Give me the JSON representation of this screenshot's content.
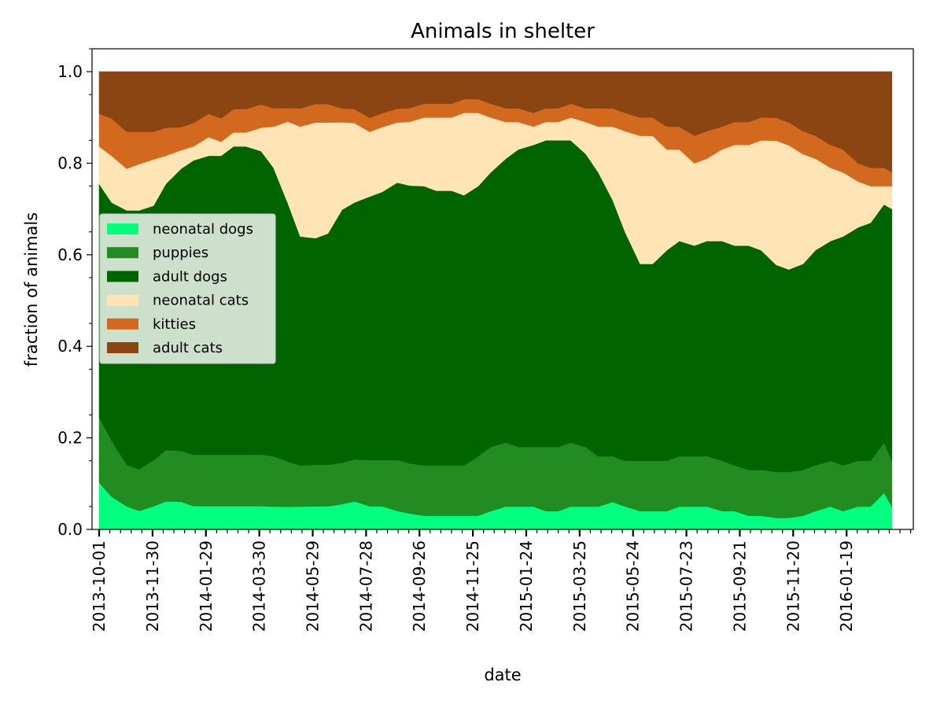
{
  "chart_data": {
    "type": "area",
    "stacked": true,
    "normalized": true,
    "title": "Animals in shelter",
    "xlabel": "date",
    "ylabel": "fraction of animals",
    "xlim": [
      "2013-09-23",
      "2016-04-03"
    ],
    "ylim": [
      0,
      1.05
    ],
    "grid": false,
    "legend_position": "center-left",
    "x_ticks": [
      "2013-10-01",
      "2013-11-30",
      "2014-01-29",
      "2014-03-30",
      "2014-05-29",
      "2014-07-28",
      "2014-09-26",
      "2014-11-25",
      "2015-01-24",
      "2015-03-25",
      "2015-05-24",
      "2015-07-23",
      "2015-09-21",
      "2015-11-20",
      "2016-01-19"
    ],
    "y_ticks": [
      "0.0",
      "0.2",
      "0.4",
      "0.6",
      "0.8",
      "1.0"
    ],
    "x": [
      "2013-10-01",
      "2013-10-15",
      "2013-11-01",
      "2013-11-15",
      "2013-12-01",
      "2013-12-15",
      "2014-01-01",
      "2014-01-15",
      "2014-02-01",
      "2014-02-15",
      "2014-03-01",
      "2014-03-15",
      "2014-04-01",
      "2014-04-15",
      "2014-05-01",
      "2014-05-15",
      "2014-06-01",
      "2014-06-15",
      "2014-07-01",
      "2014-07-15",
      "2014-08-01",
      "2014-08-15",
      "2014-09-01",
      "2014-09-15",
      "2014-10-01",
      "2014-10-15",
      "2014-11-01",
      "2014-11-15",
      "2014-12-01",
      "2014-12-15",
      "2015-01-01",
      "2015-01-15",
      "2015-02-01",
      "2015-02-15",
      "2015-03-01",
      "2015-03-15",
      "2015-04-01",
      "2015-04-15",
      "2015-05-01",
      "2015-05-15",
      "2015-06-01",
      "2015-06-15",
      "2015-07-01",
      "2015-07-15",
      "2015-08-01",
      "2015-08-15",
      "2015-09-01",
      "2015-09-15",
      "2015-10-01",
      "2015-10-15",
      "2015-11-01",
      "2015-11-15",
      "2015-12-01",
      "2015-12-15",
      "2016-01-01",
      "2016-01-15",
      "2016-02-01",
      "2016-02-15",
      "2016-03-01",
      "2016-03-10"
    ],
    "series": [
      {
        "name": "neonatal dogs",
        "color": "#00ff7f",
        "values": [
          0.1,
          0.07,
          0.05,
          0.04,
          0.05,
          0.06,
          0.06,
          0.05,
          0.05,
          0.05,
          0.05,
          0.05,
          0.05,
          0.05,
          0.05,
          0.05,
          0.05,
          0.05,
          0.055,
          0.06,
          0.05,
          0.05,
          0.04,
          0.035,
          0.03,
          0.03,
          0.03,
          0.03,
          0.03,
          0.04,
          0.05,
          0.05,
          0.05,
          0.04,
          0.04,
          0.05,
          0.05,
          0.05,
          0.06,
          0.05,
          0.04,
          0.04,
          0.04,
          0.05,
          0.05,
          0.05,
          0.04,
          0.04,
          0.03,
          0.03,
          0.025,
          0.025,
          0.03,
          0.04,
          0.05,
          0.04,
          0.05,
          0.05,
          0.08,
          0.05
        ]
      },
      {
        "name": "puppies",
        "color": "#228b22",
        "values": [
          0.14,
          0.12,
          0.09,
          0.09,
          0.1,
          0.11,
          0.11,
          0.11,
          0.11,
          0.11,
          0.11,
          0.11,
          0.11,
          0.11,
          0.1,
          0.09,
          0.09,
          0.09,
          0.09,
          0.09,
          0.1,
          0.1,
          0.11,
          0.11,
          0.11,
          0.11,
          0.11,
          0.11,
          0.13,
          0.14,
          0.14,
          0.13,
          0.13,
          0.14,
          0.14,
          0.14,
          0.13,
          0.11,
          0.1,
          0.1,
          0.11,
          0.11,
          0.11,
          0.11,
          0.11,
          0.11,
          0.11,
          0.1,
          0.1,
          0.1,
          0.1,
          0.1,
          0.1,
          0.1,
          0.1,
          0.1,
          0.1,
          0.1,
          0.11,
          0.1
        ]
      },
      {
        "name": "adult dogs",
        "color": "#006400",
        "values": [
          0.5,
          0.51,
          0.55,
          0.56,
          0.55,
          0.57,
          0.61,
          0.63,
          0.64,
          0.64,
          0.66,
          0.66,
          0.65,
          0.63,
          0.57,
          0.5,
          0.49,
          0.5,
          0.55,
          0.55,
          0.57,
          0.58,
          0.6,
          0.61,
          0.61,
          0.6,
          0.6,
          0.59,
          0.59,
          0.6,
          0.62,
          0.65,
          0.66,
          0.67,
          0.67,
          0.66,
          0.64,
          0.62,
          0.56,
          0.5,
          0.43,
          0.43,
          0.46,
          0.47,
          0.46,
          0.47,
          0.48,
          0.48,
          0.49,
          0.48,
          0.45,
          0.44,
          0.45,
          0.47,
          0.48,
          0.5,
          0.51,
          0.52,
          0.52,
          0.55
        ]
      },
      {
        "name": "neonatal cats",
        "color": "#ffe4b5",
        "values": [
          0.08,
          0.1,
          0.09,
          0.1,
          0.1,
          0.06,
          0.04,
          0.03,
          0.04,
          0.03,
          0.03,
          0.03,
          0.05,
          0.09,
          0.18,
          0.24,
          0.25,
          0.24,
          0.19,
          0.17,
          0.14,
          0.14,
          0.13,
          0.14,
          0.15,
          0.16,
          0.16,
          0.18,
          0.16,
          0.12,
          0.08,
          0.06,
          0.04,
          0.04,
          0.04,
          0.05,
          0.07,
          0.1,
          0.16,
          0.22,
          0.28,
          0.28,
          0.22,
          0.2,
          0.18,
          0.18,
          0.2,
          0.22,
          0.22,
          0.24,
          0.27,
          0.27,
          0.24,
          0.2,
          0.16,
          0.14,
          0.1,
          0.08,
          0.04,
          0.05
        ]
      },
      {
        "name": "kitties",
        "color": "#d2691e",
        "values": [
          0.07,
          0.08,
          0.08,
          0.07,
          0.06,
          0.06,
          0.05,
          0.05,
          0.05,
          0.05,
          0.05,
          0.05,
          0.05,
          0.04,
          0.03,
          0.04,
          0.04,
          0.04,
          0.03,
          0.03,
          0.03,
          0.03,
          0.03,
          0.03,
          0.03,
          0.03,
          0.03,
          0.03,
          0.03,
          0.03,
          0.03,
          0.03,
          0.03,
          0.03,
          0.03,
          0.03,
          0.03,
          0.04,
          0.04,
          0.04,
          0.04,
          0.04,
          0.05,
          0.05,
          0.06,
          0.06,
          0.05,
          0.05,
          0.05,
          0.05,
          0.05,
          0.05,
          0.05,
          0.05,
          0.05,
          0.05,
          0.04,
          0.04,
          0.04,
          0.03
        ]
      },
      {
        "name": "adult cats",
        "color": "#8b4513",
        "values": [
          0.09,
          0.1,
          0.13,
          0.13,
          0.13,
          0.12,
          0.12,
          0.11,
          0.09,
          0.1,
          0.08,
          0.08,
          0.07,
          0.08,
          0.08,
          0.08,
          0.07,
          0.07,
          0.08,
          0.08,
          0.1,
          0.09,
          0.08,
          0.08,
          0.07,
          0.07,
          0.07,
          0.06,
          0.06,
          0.07,
          0.08,
          0.08,
          0.09,
          0.08,
          0.08,
          0.07,
          0.08,
          0.08,
          0.08,
          0.09,
          0.1,
          0.1,
          0.12,
          0.12,
          0.14,
          0.13,
          0.12,
          0.11,
          0.11,
          0.1,
          0.1,
          0.11,
          0.13,
          0.14,
          0.16,
          0.17,
          0.2,
          0.21,
          0.21,
          0.22
        ]
      }
    ]
  }
}
